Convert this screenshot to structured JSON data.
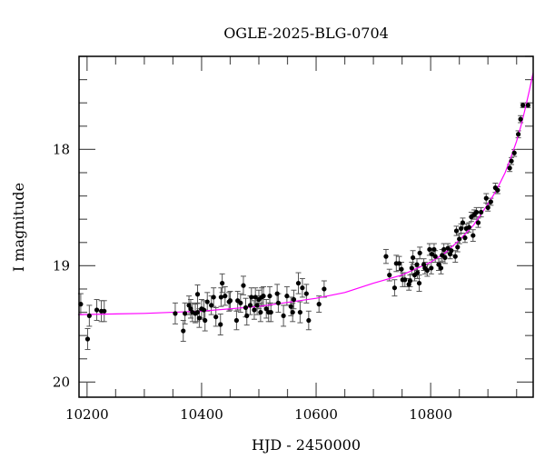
{
  "chart_data": {
    "type": "scatter",
    "title": "OGLE-2025-BLG-0704",
    "xlabel": "HJD - 2450000",
    "ylabel": "I magnitude",
    "xlim": [
      10186,
      10979
    ],
    "ylim": [
      20.13,
      17.2
    ],
    "y_inverted": true,
    "xticks": [
      10200,
      10400,
      10600,
      10800
    ],
    "xtick_labels": [
      "10200",
      "10400",
      "10600",
      "10800"
    ],
    "x_minor_step": 50,
    "yticks": [
      18,
      19,
      20
    ],
    "ytick_labels": [
      "18",
      "19",
      "20"
    ],
    "y_minor_step": 0.2,
    "grid": false,
    "colors": {
      "points": "#000000",
      "errorbars": "#555555",
      "model": "#ff00ff"
    },
    "points": [
      [
        10189,
        19.33,
        0.09
      ],
      [
        10201,
        19.63,
        0.09
      ],
      [
        10204,
        19.43,
        0.09
      ],
      [
        10217,
        19.38,
        0.09
      ],
      [
        10225,
        19.39,
        0.09
      ],
      [
        10230,
        19.39,
        0.09
      ],
      [
        10354,
        19.41,
        0.09
      ],
      [
        10368,
        19.56,
        0.09
      ],
      [
        10371,
        19.41,
        0.09
      ],
      [
        10378,
        19.34,
        0.08
      ],
      [
        10381,
        19.37,
        0.08
      ],
      [
        10384,
        19.4,
        0.08
      ],
      [
        10389,
        19.41,
        0.08
      ],
      [
        10393,
        19.4,
        0.08
      ],
      [
        10393,
        19.245,
        0.08
      ],
      [
        10396,
        19.45,
        0.08
      ],
      [
        10400,
        19.37,
        0.08
      ],
      [
        10404,
        19.38,
        0.08
      ],
      [
        10406,
        19.47,
        0.09
      ],
      [
        10410,
        19.31,
        0.08
      ],
      [
        10417,
        19.34,
        0.08
      ],
      [
        10421,
        19.27,
        0.08
      ],
      [
        10425,
        19.44,
        0.08
      ],
      [
        10433,
        19.505,
        0.09
      ],
      [
        10434,
        19.27,
        0.08
      ],
      [
        10436,
        19.15,
        0.08
      ],
      [
        10441,
        19.26,
        0.08
      ],
      [
        10448,
        19.31,
        0.08
      ],
      [
        10450,
        19.3,
        0.08
      ],
      [
        10461,
        19.47,
        0.08
      ],
      [
        10463,
        19.3,
        0.08
      ],
      [
        10468,
        19.32,
        0.08
      ],
      [
        10473,
        19.17,
        0.08
      ],
      [
        10477,
        19.36,
        0.08
      ],
      [
        10479,
        19.43,
        0.08
      ],
      [
        10485,
        19.34,
        0.08
      ],
      [
        10487,
        19.27,
        0.08
      ],
      [
        10492,
        19.38,
        0.08
      ],
      [
        10494,
        19.27,
        0.08
      ],
      [
        10497,
        19.34,
        0.08
      ],
      [
        10500,
        19.29,
        0.08
      ],
      [
        10503,
        19.4,
        0.08
      ],
      [
        10505,
        19.27,
        0.08
      ],
      [
        10508,
        19.26,
        0.08
      ],
      [
        10513,
        19.37,
        0.08
      ],
      [
        10517,
        19.4,
        0.08
      ],
      [
        10519,
        19.26,
        0.08
      ],
      [
        10521,
        19.4,
        0.08
      ],
      [
        10532,
        19.24,
        0.08
      ],
      [
        10534,
        19.32,
        0.08
      ],
      [
        10543,
        19.43,
        0.09
      ],
      [
        10549,
        19.26,
        0.08
      ],
      [
        10556,
        19.35,
        0.08
      ],
      [
        10559,
        19.4,
        0.08
      ],
      [
        10561,
        19.29,
        0.08
      ],
      [
        10569,
        19.15,
        0.09
      ],
      [
        10572,
        19.4,
        0.09
      ],
      [
        10576,
        19.19,
        0.08
      ],
      [
        10583,
        19.24,
        0.08
      ],
      [
        10587,
        19.47,
        0.08
      ],
      [
        10605,
        19.33,
        0.07
      ],
      [
        10614,
        19.2,
        0.07
      ],
      [
        10722,
        18.92,
        0.06
      ],
      [
        10728,
        19.08,
        0.05
      ],
      [
        10737,
        19.19,
        0.07
      ],
      [
        10740,
        18.98,
        0.07
      ],
      [
        10745,
        18.98,
        0.06
      ],
      [
        10749,
        19.03,
        0.06
      ],
      [
        10751,
        19.12,
        0.06
      ],
      [
        10755,
        19.12,
        0.06
      ],
      [
        10762,
        19.16,
        0.05
      ],
      [
        10764,
        19.13,
        0.05
      ],
      [
        10767,
        19.02,
        0.05
      ],
      [
        10769,
        18.93,
        0.06
      ],
      [
        10772,
        19.08,
        0.05
      ],
      [
        10776,
        18.99,
        0.05
      ],
      [
        10777,
        19.06,
        0.05
      ],
      [
        10780,
        19.15,
        0.07
      ],
      [
        10781,
        18.89,
        0.05
      ],
      [
        10788,
        18.99,
        0.05
      ],
      [
        10790,
        19.02,
        0.05
      ],
      [
        10794,
        19.04,
        0.05
      ],
      [
        10798,
        18.86,
        0.05
      ],
      [
        10801,
        19.02,
        0.05
      ],
      [
        10802,
        18.9,
        0.05
      ],
      [
        10806,
        18.86,
        0.05
      ],
      [
        10808,
        18.92,
        0.05
      ],
      [
        10814,
        18.99,
        0.05
      ],
      [
        10818,
        19.02,
        0.05
      ],
      [
        10820,
        18.91,
        0.05
      ],
      [
        10823,
        18.86,
        0.05
      ],
      [
        10825,
        18.93,
        0.05
      ],
      [
        10830,
        18.85,
        0.04
      ],
      [
        10834,
        18.9,
        0.04
      ],
      [
        10836,
        18.87,
        0.04
      ],
      [
        10843,
        18.92,
        0.05
      ],
      [
        10845,
        18.7,
        0.04
      ],
      [
        10847,
        18.84,
        0.04
      ],
      [
        10850,
        18.77,
        0.04
      ],
      [
        10853,
        18.68,
        0.04
      ],
      [
        10856,
        18.63,
        0.04
      ],
      [
        10860,
        18.76,
        0.04
      ],
      [
        10862,
        18.68,
        0.04
      ],
      [
        10867,
        18.67,
        0.04
      ],
      [
        10871,
        18.58,
        0.04
      ],
      [
        10874,
        18.74,
        0.05
      ],
      [
        10876,
        18.56,
        0.04
      ],
      [
        10880,
        18.54,
        0.04
      ],
      [
        10883,
        18.63,
        0.04
      ],
      [
        10888,
        18.54,
        0.04
      ],
      [
        10897,
        18.42,
        0.04
      ],
      [
        10900,
        18.5,
        0.03
      ],
      [
        10905,
        18.45,
        0.03
      ],
      [
        10913,
        18.33,
        0.04
      ],
      [
        10917,
        18.35,
        0.03
      ],
      [
        10938,
        18.16,
        0.03
      ],
      [
        10941,
        18.1,
        0.03
      ],
      [
        10946,
        18.03,
        0.03
      ],
      [
        10953,
        17.87,
        0.03
      ],
      [
        10957,
        17.74,
        0.03
      ],
      [
        10961,
        17.62,
        0.02
      ],
      [
        10970,
        17.62,
        0.02
      ]
    ],
    "model_curve": [
      [
        10186,
        19.42
      ],
      [
        10300,
        19.41
      ],
      [
        10400,
        19.39
      ],
      [
        10500,
        19.35
      ],
      [
        10600,
        19.28
      ],
      [
        10650,
        19.23
      ],
      [
        10700,
        19.15
      ],
      [
        10750,
        19.08
      ],
      [
        10800,
        18.97
      ],
      [
        10825,
        18.89
      ],
      [
        10850,
        18.78
      ],
      [
        10875,
        18.65
      ],
      [
        10900,
        18.47
      ],
      [
        10915,
        18.35
      ],
      [
        10930,
        18.2
      ],
      [
        10940,
        18.07
      ],
      [
        10950,
        17.93
      ],
      [
        10958,
        17.79
      ],
      [
        10965,
        17.65
      ],
      [
        10972,
        17.5
      ],
      [
        10979,
        17.34
      ]
    ]
  }
}
